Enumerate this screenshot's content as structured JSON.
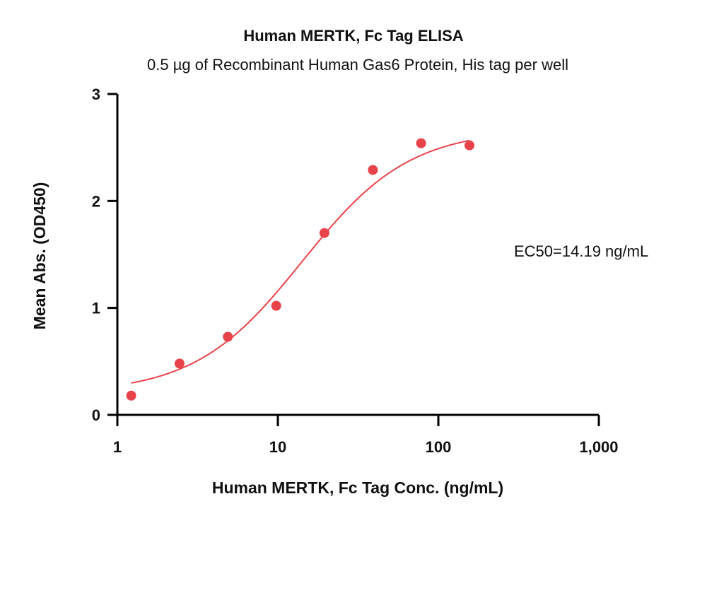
{
  "chart_data": {
    "type": "scatter",
    "title": "Human MERTK, Fc Tag ELISA",
    "subtitle": "0.5 µg of Recombinant Human Gas6 Protein, His tag per well",
    "xlabel": "Human MERTK, Fc Tag Conc. (ng/mL)",
    "ylabel": "Mean Abs. (OD450)",
    "x_scale": "log",
    "xlim": [
      1,
      1000
    ],
    "ylim": [
      0,
      3
    ],
    "x_ticks": [
      1,
      10,
      100,
      1000
    ],
    "x_tick_labels": [
      "1",
      "10",
      "100",
      "1,000"
    ],
    "y_ticks": [
      0,
      1,
      2,
      3
    ],
    "y_tick_labels": [
      "0",
      "1",
      "2",
      "3"
    ],
    "grid": false,
    "series": [
      {
        "x": [
          1.22,
          2.44,
          4.88,
          9.77,
          19.5,
          39.1,
          78.1,
          156.3
        ],
        "y": [
          0.18,
          0.48,
          0.73,
          1.02,
          1.7,
          2.29,
          2.54,
          2.52
        ]
      }
    ],
    "fit": {
      "model": "4PL",
      "bottom": 0.2,
      "top": 2.67,
      "ec50": 14.19,
      "hill": 1.3,
      "x_range": [
        1.22,
        156.3
      ]
    },
    "annotations": [
      "EC50=14.19 ng/mL"
    ],
    "colors": {
      "points": "#e8434a",
      "curve": "#e8434a",
      "axes": "#000000"
    }
  }
}
